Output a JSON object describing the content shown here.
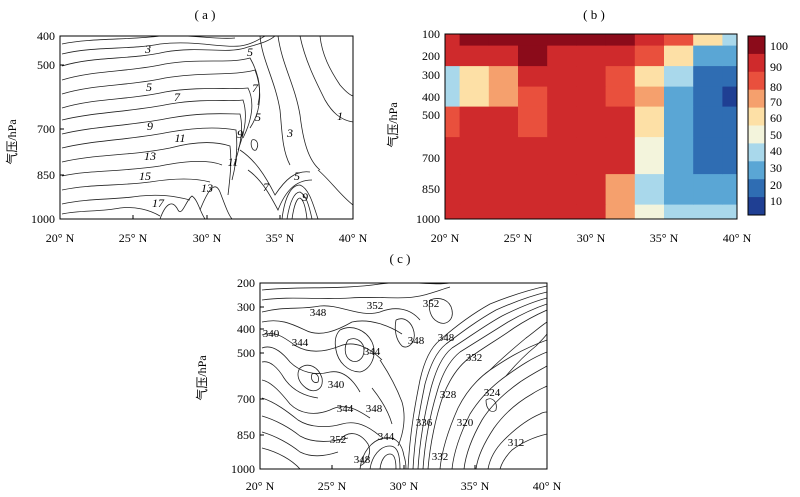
{
  "panels": [
    {
      "label": "( a )",
      "type": "contour",
      "ylabel": "气压/hPa",
      "xticks": [
        "20° N",
        "25° N",
        "30° N",
        "35° N",
        "40° N"
      ],
      "yticks": [
        "400",
        "500",
        "700",
        "850",
        "1000"
      ],
      "contour_labels": [
        "3",
        "5",
        "5",
        "7",
        "7",
        "9",
        "9",
        "11",
        "11",
        "13",
        "13",
        "15",
        "17",
        "1",
        "3",
        "5",
        "5",
        "7",
        "9"
      ]
    },
    {
      "label": "( b )",
      "type": "heatmap",
      "ylabel": "气压/hPa",
      "xticks": [
        "20° N",
        "25° N",
        "30° N",
        "35° N",
        "40° N"
      ],
      "yticks": [
        "100",
        "200",
        "300",
        "400",
        "500",
        "700",
        "850",
        "1000"
      ],
      "colorbar_ticks": [
        "100",
        "90",
        "80",
        "70",
        "60",
        "50",
        "40",
        "30",
        "20",
        "10"
      ],
      "colorbar_colors": [
        "#8b0b1a",
        "#cf2a2c",
        "#e9503d",
        "#f5a06d",
        "#fde0a6",
        "#f3f4dc",
        "#a9d8eb",
        "#5aa6d5",
        "#2f6db3",
        "#1f3f93"
      ]
    },
    {
      "label": "( c )",
      "type": "contour",
      "ylabel": "气压/hPa",
      "xticks": [
        "20° N",
        "25° N",
        "30° N",
        "35° N",
        "40° N"
      ],
      "yticks": [
        "200",
        "300",
        "400",
        "500",
        "700",
        "850",
        "1000"
      ],
      "contour_labels": [
        "348",
        "352",
        "352",
        "340",
        "344",
        "344",
        "348",
        "348",
        "340",
        "332",
        "328",
        "344",
        "348",
        "336",
        "324",
        "320",
        "352",
        "344",
        "348",
        "332",
        "312"
      ]
    }
  ],
  "chart_data": [
    {
      "type": "contour",
      "panel": "( a )",
      "ylabel": "气压/hPa",
      "x": [
        20,
        25,
        30,
        35,
        40
      ],
      "x_unit": "° N",
      "y_levels": [
        400,
        500,
        700,
        850,
        1000
      ],
      "ylim": [
        1000,
        400
      ],
      "contour_values_labeled": [
        1,
        3,
        5,
        7,
        9,
        11,
        13,
        15,
        17
      ]
    },
    {
      "type": "heatmap",
      "panel": "( b )",
      "ylabel": "气压/hPa",
      "x": [
        20,
        22,
        24,
        26,
        28,
        30,
        32,
        34,
        36,
        38,
        40
      ],
      "x_unit": "° N",
      "y_levels": [
        1000,
        850,
        700,
        500,
        400,
        300,
        200,
        100
      ],
      "ylim": [
        1000,
        100
      ],
      "colorbar": [
        10,
        20,
        30,
        40,
        50,
        60,
        70,
        80,
        90,
        100
      ],
      "values": [
        [
          85,
          88,
          85,
          85,
          90,
          85,
          70,
          45,
          35,
          40,
          40
        ],
        [
          85,
          88,
          90,
          88,
          88,
          85,
          70,
          40,
          30,
          30,
          25
        ],
        [
          85,
          88,
          88,
          88,
          88,
          88,
          85,
          45,
          25,
          20,
          15
        ],
        [
          75,
          85,
          82,
          78,
          88,
          85,
          82,
          55,
          30,
          15,
          15
        ],
        [
          35,
          60,
          68,
          75,
          85,
          85,
          80,
          65,
          30,
          15,
          10
        ],
        [
          40,
          55,
          62,
          82,
          85,
          88,
          75,
          60,
          35,
          20,
          15
        ],
        [
          85,
          90,
          90,
          92,
          85,
          88,
          85,
          80,
          60,
          30,
          25
        ],
        [
          90,
          92,
          92,
          95,
          100,
          100,
          95,
          90,
          80,
          55,
          40
        ]
      ]
    },
    {
      "type": "contour",
      "panel": "( c )",
      "ylabel": "气压/hPa",
      "x": [
        20,
        25,
        30,
        35,
        40
      ],
      "x_unit": "° N",
      "y_levels": [
        200,
        300,
        400,
        500,
        700,
        850,
        1000
      ],
      "ylim": [
        1000,
        200
      ],
      "contour_values_labeled": [
        312,
        320,
        324,
        328,
        332,
        336,
        340,
        344,
        348,
        352
      ]
    }
  ]
}
